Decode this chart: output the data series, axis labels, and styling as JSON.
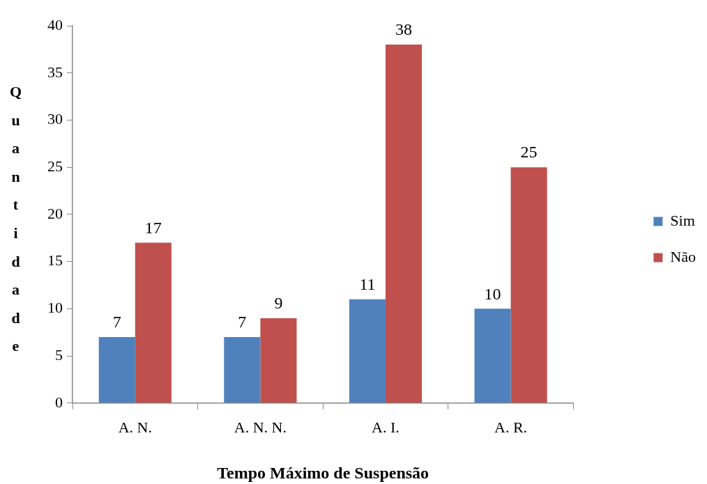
{
  "chart_data": {
    "type": "bar",
    "xlabel": "Tempo Máximo de Suspensão",
    "ylabel": "Quantidade",
    "categories": [
      "A. N.",
      "A. N. N.",
      "A. I.",
      "A. R."
    ],
    "series": [
      {
        "name": "Sim",
        "color": "#4f81bd",
        "values": [
          7,
          7,
          11,
          10
        ]
      },
      {
        "name": "Não",
        "color": "#c0504d",
        "values": [
          17,
          9,
          38,
          25
        ]
      }
    ],
    "ylim": [
      0,
      40
    ],
    "yticks": [
      0,
      5,
      10,
      15,
      20,
      25,
      30,
      35,
      40
    ],
    "grid": false,
    "legend": "right",
    "data_labels": true
  }
}
